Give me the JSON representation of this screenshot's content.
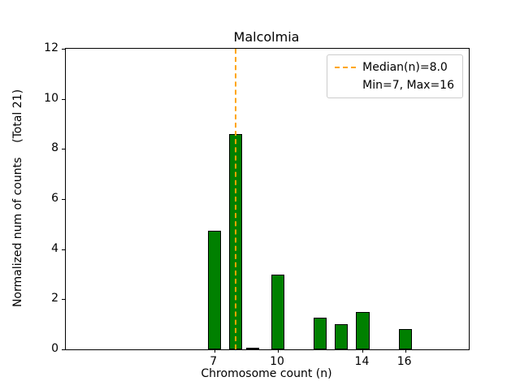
{
  "title": "Malcolmia",
  "axes": {
    "xlabel": "Chromosome count (n)",
    "ylabel": "Normalized num of counts    (Total 21)"
  },
  "legend": {
    "items": [
      {
        "label": "Median(n)=8.0",
        "sample": "dashed-line-icon",
        "color": "#ffa500"
      },
      {
        "label": "Min=7, Max=16",
        "sample": "none"
      }
    ]
  },
  "chart_data": {
    "type": "bar",
    "title": "Malcolmia",
    "xlabel": "Chromosome count (n)",
    "ylabel": "Normalized num of counts (Total 21)",
    "x": [
      7,
      8,
      8.8,
      10,
      12,
      13,
      14,
      16
    ],
    "values": [
      4.75,
      8.6,
      0.05,
      3.0,
      1.25,
      1.0,
      1.5,
      0.8
    ],
    "bar_color": "#008000",
    "bar_edge_color": "#000000",
    "bar_width_units": 0.62,
    "xlim": [
      0,
      19
    ],
    "ylim": [
      0,
      12
    ],
    "xticks": [
      7,
      10,
      14,
      16
    ],
    "yticks": [
      0,
      2,
      4,
      6,
      8,
      10,
      12
    ],
    "median_line": {
      "x": 8,
      "color": "#ffa500",
      "style": "dashed",
      "label": "Median(n)=8.0"
    },
    "annotations": [
      "Min=7, Max=16"
    ],
    "legend_position": "upper right",
    "grid": false,
    "total_counts": 21,
    "min_n": 7,
    "max_n": 16,
    "median_n": 8.0
  }
}
